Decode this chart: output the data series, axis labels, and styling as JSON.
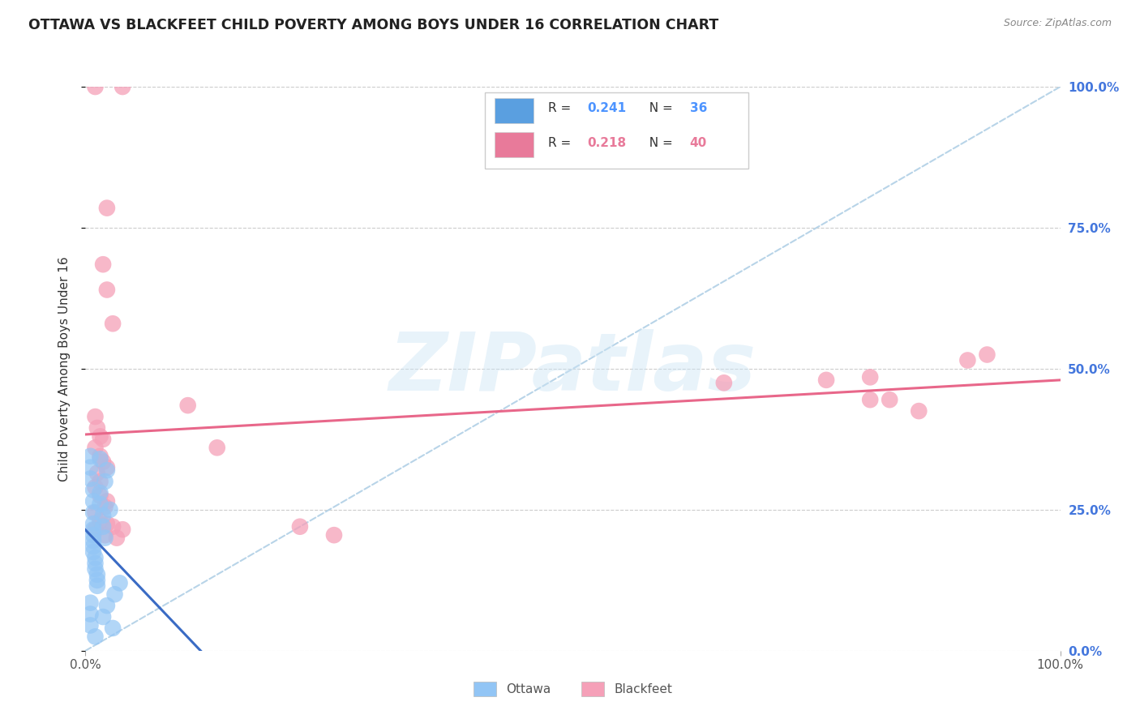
{
  "title": "OTTAWA VS BLACKFEET CHILD POVERTY AMONG BOYS UNDER 16 CORRELATION CHART",
  "source": "Source: ZipAtlas.com",
  "ylabel": "Child Poverty Among Boys Under 16",
  "xlim": [
    0,
    1
  ],
  "ylim": [
    0,
    1
  ],
  "ytick_vals": [
    0.0,
    0.25,
    0.5,
    0.75,
    1.0
  ],
  "ytick_labels": [
    "0.0%",
    "25.0%",
    "50.0%",
    "75.0%",
    "100.0%"
  ],
  "xtick_vals": [
    0.0,
    1.0
  ],
  "xtick_labels": [
    "0.0%",
    "100.0%"
  ],
  "grid_color": "#cccccc",
  "background_color": "#ffffff",
  "watermark": "ZIPatlas",
  "ottawa_color": "#92c5f5",
  "blackfeet_color": "#f5a0b8",
  "ottawa_line_color": "#3a6bc4",
  "blackfeet_line_color": "#e8678a",
  "diagonal_color": "#b8d4e8",
  "legend_r1": "R = 0.241",
  "legend_n1": "N = 36",
  "legend_r2": "R = 0.218",
  "legend_n2": "N = 40",
  "legend_color1": "#5a9fe0",
  "legend_color2": "#e87a9a",
  "legend_num_color1": "#4d94ff",
  "legend_num_color2": "#e8678a",
  "ottawa_points": [
    [
      0.005,
      0.345
    ],
    [
      0.005,
      0.325
    ],
    [
      0.005,
      0.305
    ],
    [
      0.008,
      0.285
    ],
    [
      0.008,
      0.265
    ],
    [
      0.008,
      0.245
    ],
    [
      0.008,
      0.225
    ],
    [
      0.008,
      0.215
    ],
    [
      0.008,
      0.205
    ],
    [
      0.008,
      0.195
    ],
    [
      0.008,
      0.185
    ],
    [
      0.008,
      0.175
    ],
    [
      0.01,
      0.165
    ],
    [
      0.01,
      0.155
    ],
    [
      0.01,
      0.145
    ],
    [
      0.012,
      0.135
    ],
    [
      0.012,
      0.125
    ],
    [
      0.012,
      0.115
    ],
    [
      0.015,
      0.34
    ],
    [
      0.015,
      0.28
    ],
    [
      0.015,
      0.26
    ],
    [
      0.018,
      0.24
    ],
    [
      0.018,
      0.22
    ],
    [
      0.02,
      0.2
    ],
    [
      0.02,
      0.3
    ],
    [
      0.022,
      0.32
    ],
    [
      0.025,
      0.25
    ],
    [
      0.03,
      0.1
    ],
    [
      0.035,
      0.12
    ],
    [
      0.018,
      0.06
    ],
    [
      0.022,
      0.08
    ],
    [
      0.028,
      0.04
    ],
    [
      0.005,
      0.085
    ],
    [
      0.005,
      0.065
    ],
    [
      0.005,
      0.045
    ],
    [
      0.01,
      0.025
    ]
  ],
  "blackfeet_points": [
    [
      0.01,
      1.0
    ],
    [
      0.038,
      1.0
    ],
    [
      0.022,
      0.785
    ],
    [
      0.018,
      0.685
    ],
    [
      0.022,
      0.64
    ],
    [
      0.028,
      0.58
    ],
    [
      0.01,
      0.415
    ],
    [
      0.012,
      0.395
    ],
    [
      0.015,
      0.38
    ],
    [
      0.018,
      0.375
    ],
    [
      0.01,
      0.36
    ],
    [
      0.015,
      0.345
    ],
    [
      0.018,
      0.335
    ],
    [
      0.022,
      0.325
    ],
    [
      0.012,
      0.315
    ],
    [
      0.015,
      0.3
    ],
    [
      0.01,
      0.29
    ],
    [
      0.015,
      0.275
    ],
    [
      0.022,
      0.265
    ],
    [
      0.02,
      0.255
    ],
    [
      0.01,
      0.245
    ],
    [
      0.015,
      0.23
    ],
    [
      0.022,
      0.225
    ],
    [
      0.028,
      0.22
    ],
    [
      0.01,
      0.215
    ],
    [
      0.02,
      0.205
    ],
    [
      0.032,
      0.2
    ],
    [
      0.038,
      0.215
    ],
    [
      0.105,
      0.435
    ],
    [
      0.135,
      0.36
    ],
    [
      0.22,
      0.22
    ],
    [
      0.255,
      0.205
    ],
    [
      0.655,
      0.475
    ],
    [
      0.76,
      0.48
    ],
    [
      0.805,
      0.485
    ],
    [
      0.805,
      0.445
    ],
    [
      0.825,
      0.445
    ],
    [
      0.855,
      0.425
    ],
    [
      0.905,
      0.515
    ],
    [
      0.925,
      0.525
    ]
  ]
}
